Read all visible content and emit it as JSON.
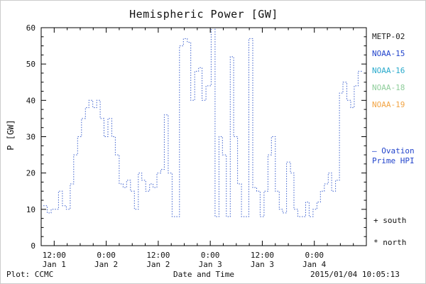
{
  "colors": {
    "axis": "#000000",
    "series_line": "#3a5fcd",
    "ovation": "#2244cc"
  },
  "legend": {
    "satellites": [
      {
        "label": "METP-02",
        "color": "#222222"
      },
      {
        "label": "NOAA-15",
        "color": "#2244cc"
      },
      {
        "label": "NOAA-16",
        "color": "#29aacc"
      },
      {
        "label": "NOAA-18",
        "color": "#8fce9b"
      },
      {
        "label": "NOAA-19",
        "color": "#f2a444"
      }
    ],
    "ovation_line1": "— Ovation",
    "ovation_line2": "Prime HPI",
    "south": "+ south",
    "north": "* north"
  },
  "footer": {
    "plot_source": "Plot: CCMC",
    "timestamp": "2015/01/04 10:05:13"
  },
  "chart_data": {
    "type": "line",
    "step": true,
    "line_style": "dotted",
    "title": "Hemispheric Power [GW]",
    "xlabel": "Date and Time",
    "ylabel": "P [GW]",
    "ylim": [
      0,
      60
    ],
    "yticks": [
      0,
      10,
      20,
      30,
      40,
      50,
      60
    ],
    "y_minor_step": 2.5,
    "xlim_hours": [
      9,
      84
    ],
    "x_minor_step_hours": 3,
    "xticks": [
      {
        "hour": 12,
        "time": "12:00",
        "date": "Jan 1"
      },
      {
        "hour": 24,
        "time": "0:00",
        "date": "Jan 2"
      },
      {
        "hour": 36,
        "time": "12:00",
        "date": "Jan 2"
      },
      {
        "hour": 48,
        "time": "0:00",
        "date": "Jan 3"
      },
      {
        "hour": 60,
        "time": "12:00",
        "date": "Jan 3"
      },
      {
        "hour": 72,
        "time": "0:00",
        "date": "Jan 4"
      }
    ],
    "legend_position": "right",
    "grid": false,
    "series": [
      {
        "name": "Ovation Prime HPI",
        "color": "#3a5fcd",
        "x_end_hour": 83.2,
        "x_hours": [
          9.5,
          10.4,
          11.3,
          12.2,
          13.0,
          13.9,
          14.8,
          15.7,
          16.5,
          17.4,
          18.3,
          19.2,
          20.0,
          20.9,
          21.8,
          22.6,
          23.5,
          24.4,
          25.3,
          26.1,
          27.0,
          27.9,
          28.7,
          29.6,
          30.5,
          31.4,
          32.2,
          33.1,
          34.0,
          34.8,
          35.7,
          36.6,
          37.4,
          38.3,
          39.2,
          40.1,
          40.9,
          41.8,
          42.7,
          43.5,
          44.4,
          45.3,
          46.1,
          47.0,
          48.2,
          49.1,
          50.0,
          50.8,
          51.7,
          52.6,
          53.4,
          54.3,
          55.2,
          56.0,
          56.9,
          57.8,
          58.7,
          59.5,
          60.4,
          61.3,
          62.1,
          63.0,
          63.9,
          64.7,
          65.6,
          66.5,
          67.3,
          68.2,
          69.1,
          70.0,
          70.8,
          71.7,
          72.6,
          73.4,
          74.3,
          75.2,
          76.0,
          76.9,
          77.8,
          78.6,
          79.5,
          80.4,
          81.2,
          82.1
        ],
        "y_gw": [
          11,
          9,
          10,
          10,
          15,
          11,
          10,
          17,
          25,
          30,
          35,
          38,
          40,
          38,
          40,
          35,
          30,
          35,
          30,
          25,
          17,
          16,
          18,
          15,
          10,
          20,
          18,
          15,
          17,
          16,
          20,
          21,
          36,
          20,
          8,
          8,
          55,
          57,
          56,
          40,
          48,
          49,
          40,
          44,
          60,
          8,
          30,
          25,
          8,
          52,
          30,
          17,
          8,
          8,
          57,
          16,
          15,
          8,
          15,
          25,
          30,
          15,
          10,
          9,
          23,
          20,
          10,
          8,
          8,
          12,
          8,
          10,
          12,
          15,
          17,
          20,
          15,
          18,
          42,
          45,
          40,
          38,
          44,
          48
        ]
      }
    ]
  }
}
